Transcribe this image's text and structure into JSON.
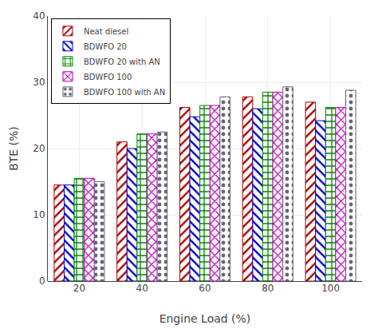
{
  "chart_data": {
    "type": "bar",
    "xlabel": "Engine Load (%)",
    "ylabel": "BTE (%)",
    "categories": [
      20,
      40,
      60,
      80,
      100
    ],
    "series": [
      {
        "name": "Neat diesel",
        "color": "#aa0000",
        "values": [
          14.5,
          21.0,
          26.2,
          27.8,
          27.0
        ]
      },
      {
        "name": "BDWFO 20",
        "color": "#0000cc",
        "values": [
          14.5,
          20.0,
          24.8,
          26.0,
          24.2
        ]
      },
      {
        "name": "BDWFO 20 with AN",
        "color": "#008800",
        "values": [
          15.5,
          22.2,
          26.5,
          28.5,
          26.2
        ]
      },
      {
        "name": "BDWFO 100",
        "color": "#bb00bb",
        "values": [
          15.5,
          22.2,
          26.5,
          28.5,
          26.2
        ]
      },
      {
        "name": "BDWFO 100 with AN",
        "color": "#666677",
        "values": [
          15.0,
          22.5,
          27.8,
          29.3,
          28.8
        ]
      }
    ],
    "ylim": [
      0,
      40
    ],
    "yticks": [
      0,
      10,
      20,
      30,
      40
    ],
    "grid": true,
    "legend": "upper left"
  }
}
